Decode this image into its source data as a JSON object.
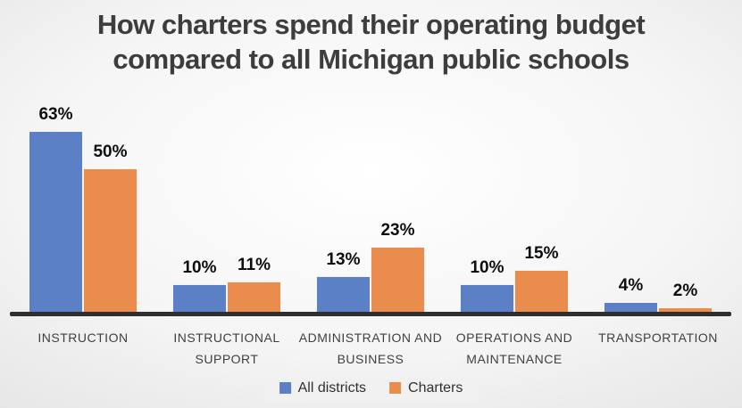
{
  "slide": {
    "title": {
      "line1": "How charters spend their operating budget",
      "line2": "compared to all Michigan public schools"
    }
  },
  "legend": {
    "position": "bottom-center",
    "items": [
      {
        "label": "All districts",
        "color": "#5b80c6"
      },
      {
        "label": "Charters",
        "color": "#ea8c4d"
      }
    ]
  },
  "chart_data": {
    "type": "bar",
    "title": "How charters spend their operating budget compared to all Michigan public schools",
    "categories": [
      "INSTRUCTION",
      "INSTRUCTIONAL SUPPORT",
      "ADMINISTRATION AND BUSINESS",
      "OPERATIONS AND MAINTENANCE",
      "TRANSPORTATION"
    ],
    "series": [
      {
        "name": "All districts",
        "color": "#5b80c6",
        "values": [
          63,
          10,
          13,
          10,
          4
        ]
      },
      {
        "name": "Charters",
        "color": "#ea8c4d",
        "values": [
          50,
          11,
          23,
          15,
          2
        ]
      }
    ],
    "unit": "%",
    "data_labels": true,
    "grid": false,
    "y_axis_visible": false,
    "ylim": [
      0,
      70
    ],
    "xlabel": "",
    "ylabel": "",
    "legend_position": "bottom"
  },
  "colors": {
    "title_text": "#3d3d3d",
    "category_text": "#404040",
    "data_label_text": "#0d0d0d",
    "axis_line": "#2f2f2f",
    "legend_bg": "#f1f1f1",
    "legend_text": "#303030",
    "background_center": "#ffffff",
    "background_edge": "#d2d2d2"
  }
}
